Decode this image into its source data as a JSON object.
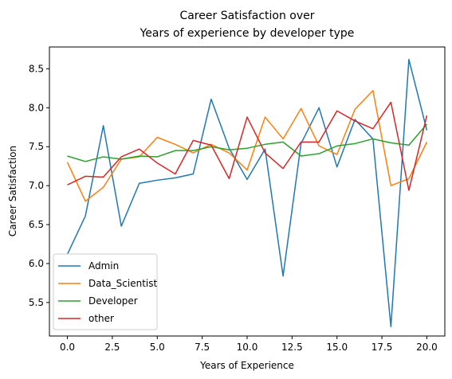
{
  "chart_data": {
    "type": "line",
    "title_lines": [
      "Career Satisfaction over",
      "Years of experience by developer type"
    ],
    "xlabel": "Years of Experience",
    "ylabel": "Career Satisfaction",
    "xlim": [
      -1.0,
      21.0
    ],
    "ylim": [
      5.07,
      8.78
    ],
    "xticks": [
      0.0,
      2.5,
      5.0,
      7.5,
      10.0,
      12.5,
      15.0,
      17.5,
      20.0
    ],
    "xtick_labels": [
      "0.0",
      "2.5",
      "5.0",
      "7.5",
      "10.0",
      "12.5",
      "15.0",
      "17.5",
      "20.0"
    ],
    "yticks": [
      5.5,
      6.0,
      6.5,
      7.0,
      7.5,
      8.0,
      8.5
    ],
    "ytick_labels": [
      "5.5",
      "6.0",
      "6.5",
      "7.0",
      "7.5",
      "8.0",
      "8.5"
    ],
    "grid": false,
    "legend_position": "lower-left",
    "x": [
      0,
      1,
      2,
      3,
      4,
      5,
      6,
      7,
      8,
      9,
      10,
      11,
      12,
      13,
      14,
      15,
      16,
      17,
      18,
      19,
      20
    ],
    "series": [
      {
        "name": "Admin",
        "color": "#1f77b4",
        "values": [
          6.12,
          6.61,
          7.77,
          6.48,
          7.03,
          7.07,
          7.1,
          7.15,
          8.11,
          7.48,
          7.08,
          7.47,
          5.84,
          7.54,
          8.0,
          7.24,
          7.85,
          7.6,
          5.19,
          8.62,
          7.71
        ]
      },
      {
        "name": "Data_Scientist",
        "color": "#ff7f0e",
        "values": [
          7.3,
          6.8,
          6.98,
          7.34,
          7.37,
          7.62,
          7.53,
          7.42,
          7.53,
          7.42,
          7.2,
          7.88,
          7.6,
          7.99,
          7.51,
          7.4,
          7.98,
          8.22,
          7.0,
          7.09,
          7.56
        ]
      },
      {
        "name": "Developer",
        "color": "#2ca02c",
        "values": [
          7.38,
          7.31,
          7.37,
          7.34,
          7.38,
          7.37,
          7.45,
          7.45,
          7.5,
          7.46,
          7.48,
          7.53,
          7.56,
          7.38,
          7.41,
          7.51,
          7.54,
          7.6,
          7.55,
          7.52,
          7.79
        ]
      },
      {
        "name": "other",
        "color": "#d62728",
        "values": [
          7.01,
          7.12,
          7.11,
          7.37,
          7.47,
          7.29,
          7.15,
          7.58,
          7.52,
          7.09,
          7.88,
          7.42,
          7.22,
          7.56,
          7.56,
          7.96,
          7.83,
          7.73,
          8.07,
          6.94,
          7.9
        ]
      }
    ]
  }
}
